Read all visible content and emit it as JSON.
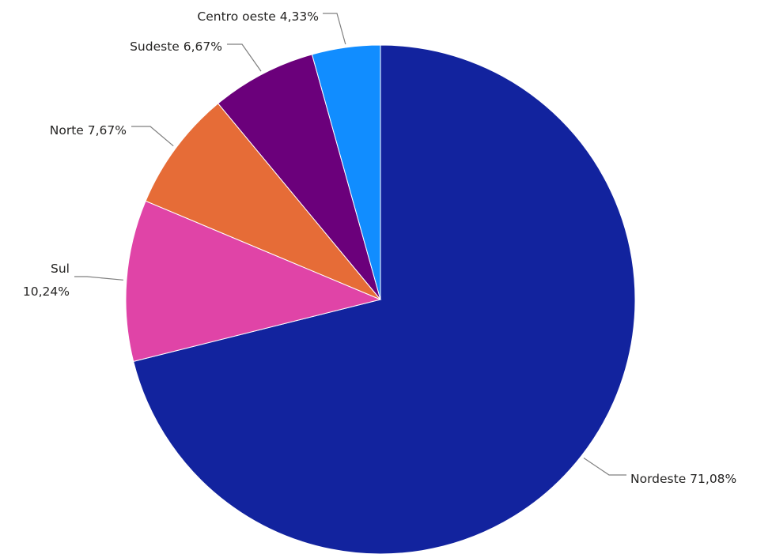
{
  "chart_data": {
    "type": "pie",
    "title": "",
    "legend": "none",
    "slices": [
      {
        "name": "Nordeste",
        "value": 71.08,
        "label": "Nordeste 71,08%",
        "color": "#12239E"
      },
      {
        "name": "Sul",
        "value": 10.24,
        "label_lines": [
          "Sul",
          "10,24%"
        ],
        "color": "#E044A7"
      },
      {
        "name": "Norte",
        "value": 7.67,
        "label": "Norte 7,67%",
        "color": "#E66C37"
      },
      {
        "name": "Sudeste",
        "value": 6.67,
        "label": "Sudeste 6,67%",
        "color": "#6B007B"
      },
      {
        "name": "Centro oeste",
        "value": 4.33,
        "label": "Centro oeste 4,33%",
        "color": "#118DFF"
      }
    ]
  }
}
